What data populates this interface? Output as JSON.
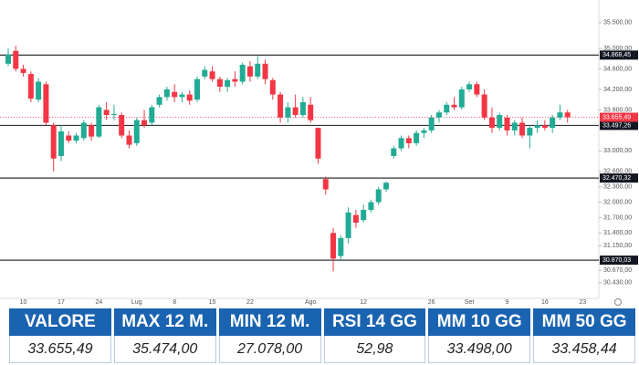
{
  "chart_data": {
    "type": "candlestick",
    "categories": [
      null,
      null,
      "10",
      null,
      null,
      null,
      null,
      "17",
      null,
      null,
      null,
      null,
      "24",
      null,
      null,
      null,
      null,
      "Lug",
      null,
      null,
      null,
      null,
      "8",
      null,
      null,
      null,
      null,
      "15",
      null,
      null,
      null,
      null,
      "22",
      null,
      null,
      null,
      null,
      null,
      null,
      null,
      "Ago",
      null,
      null,
      null,
      null,
      null,
      null,
      "12",
      null,
      null,
      null,
      null,
      null,
      null,
      null,
      null,
      "26",
      null,
      null,
      null,
      null,
      "Set",
      null,
      null,
      null,
      null,
      "9",
      null,
      null,
      null,
      null,
      "16",
      null,
      null,
      null,
      null,
      "23"
    ],
    "open": [
      34700,
      34950,
      34600,
      34500,
      34000,
      34300,
      33500,
      32900,
      33300,
      33200,
      33250,
      33500,
      33280,
      33800,
      33700,
      33700,
      33300,
      33150,
      33600,
      33550,
      33900,
      34050,
      34150,
      34050,
      34100,
      34000,
      34450,
      34550,
      34400,
      34250,
      34400,
      34350,
      34650,
      34450,
      34700,
      34380,
      34100,
      33650,
      33850,
      33700,
      33900,
      33450,
      32450,
      31400,
      30950,
      31300,
      31750,
      31650,
      31850,
      32000,
      32250,
      32900,
      33050,
      33250,
      33150,
      33350,
      33400,
      33650,
      33750,
      33900,
      33850,
      34200,
      34300,
      34100,
      33650,
      33450,
      33650,
      33400,
      33550,
      33300,
      33450,
      33500,
      33450,
      33650,
      33750,
      null,
      null
    ],
    "high": [
      35000,
      35050,
      34680,
      34550,
      34420,
      34350,
      33550,
      33500,
      33380,
      33350,
      33600,
      33550,
      33900,
      33950,
      33900,
      33750,
      33400,
      33650,
      33800,
      33900,
      34100,
      34250,
      34300,
      34150,
      34180,
      34450,
      34650,
      34650,
      34450,
      34420,
      34550,
      34720,
      34750,
      34850,
      34780,
      34420,
      34150,
      33950,
      34100,
      34050,
      34050,
      33450,
      32500,
      31500,
      31350,
      31900,
      31850,
      31950,
      32050,
      32300,
      32400,
      33100,
      33300,
      33300,
      33400,
      33450,
      33700,
      33800,
      33950,
      34050,
      34250,
      34350,
      34350,
      34200,
      33850,
      33750,
      33700,
      33600,
      33650,
      33500,
      33600,
      33600,
      33700,
      33900,
      33800,
      null,
      null
    ],
    "low": [
      34650,
      34550,
      34450,
      33950,
      33950,
      33500,
      32600,
      32800,
      33150,
      33150,
      33200,
      33200,
      33250,
      33600,
      33600,
      33250,
      33050,
      33100,
      33450,
      33500,
      33850,
      33980,
      33950,
      33950,
      33900,
      33950,
      34400,
      34350,
      34150,
      34150,
      34250,
      34300,
      34350,
      34400,
      34300,
      34000,
      33550,
      33550,
      33650,
      33650,
      33550,
      32750,
      32150,
      30650,
      30850,
      31200,
      31500,
      31600,
      31800,
      31950,
      32200,
      32850,
      33000,
      33050,
      33100,
      33250,
      33350,
      33550,
      33700,
      33800,
      33800,
      34150,
      34050,
      33600,
      33350,
      33400,
      33300,
      33300,
      33250,
      33050,
      33350,
      33400,
      33350,
      33600,
      33550,
      null,
      null
    ],
    "close": [
      34880,
      34600,
      34520,
      34020,
      34350,
      33550,
      32850,
      33380,
      33200,
      33300,
      33550,
      33280,
      33850,
      33700,
      33720,
      33300,
      33120,
      33600,
      33500,
      33850,
      34050,
      34200,
      34050,
      34100,
      33980,
      34400,
      34580,
      34400,
      34250,
      34380,
      34350,
      34680,
      34450,
      34700,
      34400,
      34100,
      33650,
      33850,
      33700,
      33950,
      33600,
      32850,
      32250,
      30900,
      31300,
      31800,
      31600,
      31850,
      32000,
      32250,
      32380,
      33050,
      33250,
      33150,
      33350,
      33400,
      33650,
      33750,
      33900,
      33850,
      34200,
      34300,
      34100,
      33650,
      33450,
      33700,
      33400,
      33550,
      33300,
      33450,
      33500,
      33450,
      33650,
      33750,
      33655.49,
      null,
      null
    ],
    "up_color": "#22ab94",
    "down_color": "#f23645",
    "ylim": [
      30160,
      35800
    ],
    "yticks": [
      {
        "value": 35500,
        "label": "35.500,00"
      },
      {
        "value": 35000,
        "label": "35.000,00"
      },
      {
        "value": 34600,
        "label": "34.600,00"
      },
      {
        "value": 34200,
        "label": "34.200,00"
      },
      {
        "value": 33800,
        "label": "33.800,00"
      },
      {
        "value": 33000,
        "label": "33.000,00"
      },
      {
        "value": 32600,
        "label": "32.600,00"
      },
      {
        "value": 32300,
        "label": "32.300,00"
      },
      {
        "value": 32000,
        "label": "32.000,00"
      },
      {
        "value": 31700,
        "label": "31.700,00"
      },
      {
        "value": 31400,
        "label": "31.400,00"
      },
      {
        "value": 31150,
        "label": "31.150,00"
      },
      {
        "value": 30670,
        "label": "30.670,00"
      },
      {
        "value": 30430,
        "label": "30.430,00"
      }
    ],
    "levels": [
      {
        "value": 34868.45,
        "label": "34.868,45"
      },
      {
        "value": 33497.26,
        "label": "33.497,26"
      },
      {
        "value": 32470.32,
        "label": "32.470,32"
      },
      {
        "value": 30870.03,
        "label": "30.870,03"
      }
    ],
    "price_line": {
      "value": 33655.49,
      "label": "33.655,49",
      "color": "#f23645"
    }
  },
  "table": {
    "headers": [
      "VALORE",
      "MAX 12 M.",
      "MIN 12 M.",
      "RSI 14 GG",
      "MM 10 GG",
      "MM 50 GG"
    ],
    "rows": [
      [
        "33.655,49",
        "35.474,00",
        "27.078,00",
        "52,98",
        "33.498,00",
        "33.458,44"
      ]
    ]
  }
}
